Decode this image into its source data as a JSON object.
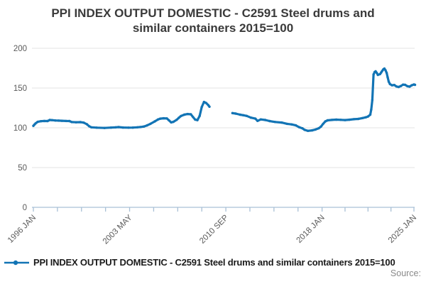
{
  "title": {
    "line1": "PPI INDEX OUTPUT DOMESTIC - C2591 Steel drums and",
    "line2": "similar containers 2015=100"
  },
  "legend": {
    "label": "PPI INDEX OUTPUT DOMESTIC - C2591 Steel drums and similar containers 2015=100"
  },
  "source": {
    "label": "Source:"
  },
  "colors": {
    "line": "#1274b5",
    "grid": "#e3e3e3",
    "axis": "#a9c0d6",
    "tick_label": "#5a5a5a",
    "title": "#3a3a3a",
    "legend_text": "#1a1a1a",
    "source_text": "#8a8a8a"
  },
  "chart_data": {
    "type": "line",
    "title": "PPI INDEX OUTPUT DOMESTIC - C2591 Steel drums and similar containers 2015=100",
    "xlabel": "",
    "ylabel": "",
    "ylim": [
      0,
      200
    ],
    "yticks": [
      0,
      50,
      100,
      150,
      200
    ],
    "ytick_labels": [
      "0",
      "50",
      "100",
      "150",
      "200"
    ],
    "xtick_labels": [
      "1996 JAN",
      "2003 MAY",
      "2010 SEP",
      "2018 JAN",
      "2025 JAN"
    ],
    "xtick_years": [
      1996.0,
      2003.333,
      2010.667,
      2018.0,
      2025.0
    ],
    "minor_ticks_between_labels": 3,
    "xlim": [
      1996.0,
      2025.25
    ],
    "grid": "horizontal",
    "legend_position": "bottom-left",
    "gap_between_segments": [
      2009.42,
      2011.17
    ],
    "series": [
      {
        "name": "PPI INDEX OUTPUT DOMESTIC - C2591 Steel drums and similar containers 2015=100",
        "color": "#1274b5",
        "segments": [
          [
            [
              1996.0,
              102.5
            ],
            [
              1996.08,
              104.0
            ],
            [
              1996.17,
              105.5
            ],
            [
              1996.33,
              107.5
            ],
            [
              1996.58,
              108.3
            ],
            [
              1996.83,
              108.6
            ],
            [
              1997.08,
              108.5
            ],
            [
              1997.25,
              109.8
            ],
            [
              1997.42,
              109.6
            ],
            [
              1997.67,
              109.2
            ],
            [
              1997.92,
              109.0
            ],
            [
              1998.17,
              108.8
            ],
            [
              1998.5,
              108.6
            ],
            [
              1998.75,
              108.5
            ],
            [
              1998.92,
              107.2
            ],
            [
              1999.25,
              107.0
            ],
            [
              1999.58,
              107.1
            ],
            [
              1999.83,
              106.5
            ],
            [
              2000.08,
              104.5
            ],
            [
              2000.25,
              102.0
            ],
            [
              2000.42,
              100.6
            ],
            [
              2000.83,
              100.2
            ],
            [
              2001.42,
              99.8
            ],
            [
              2001.92,
              100.3
            ],
            [
              2002.25,
              100.5
            ],
            [
              2002.5,
              100.9
            ],
            [
              2002.83,
              100.4
            ],
            [
              2003.25,
              100.2
            ],
            [
              2003.58,
              100.3
            ],
            [
              2003.92,
              100.6
            ],
            [
              2004.17,
              101.0
            ],
            [
              2004.42,
              101.6
            ],
            [
              2004.67,
              103.0
            ],
            [
              2004.92,
              105.0
            ],
            [
              2005.25,
              108.0
            ],
            [
              2005.5,
              110.5
            ],
            [
              2005.67,
              111.5
            ],
            [
              2005.92,
              112.0
            ],
            [
              2006.17,
              111.8
            ],
            [
              2006.33,
              109.5
            ],
            [
              2006.5,
              106.8
            ],
            [
              2006.67,
              107.5
            ],
            [
              2006.92,
              110.0
            ],
            [
              2007.08,
              112.5
            ],
            [
              2007.25,
              114.8
            ],
            [
              2007.5,
              116.5
            ],
            [
              2007.75,
              117.3
            ],
            [
              2008.0,
              117.0
            ],
            [
              2008.17,
              113.5
            ],
            [
              2008.33,
              110.3
            ],
            [
              2008.5,
              109.6
            ],
            [
              2008.67,
              115.0
            ],
            [
              2008.83,
              126.0
            ],
            [
              2009.0,
              132.5
            ],
            [
              2009.17,
              131.2
            ],
            [
              2009.33,
              128.5
            ],
            [
              2009.42,
              126.5
            ]
          ],
          [
            [
              2011.17,
              118.5
            ],
            [
              2011.42,
              117.9
            ],
            [
              2011.75,
              116.5
            ],
            [
              2012.0,
              115.8
            ],
            [
              2012.25,
              115.0
            ],
            [
              2012.58,
              112.8
            ],
            [
              2012.92,
              111.5
            ],
            [
              2013.08,
              108.7
            ],
            [
              2013.33,
              110.5
            ],
            [
              2013.67,
              109.8
            ],
            [
              2014.0,
              108.5
            ],
            [
              2014.42,
              107.3
            ],
            [
              2014.92,
              106.6
            ],
            [
              2015.33,
              105.0
            ],
            [
              2015.67,
              104.3
            ],
            [
              2016.0,
              103.0
            ],
            [
              2016.25,
              100.8
            ],
            [
              2016.5,
              99.4
            ],
            [
              2016.67,
              97.4
            ],
            [
              2016.92,
              96.2
            ],
            [
              2017.25,
              96.8
            ],
            [
              2017.5,
              97.9
            ],
            [
              2017.75,
              99.5
            ],
            [
              2017.92,
              101.5
            ],
            [
              2018.08,
              105.0
            ],
            [
              2018.25,
              108.0
            ],
            [
              2018.42,
              109.4
            ],
            [
              2018.75,
              109.9
            ],
            [
              2019.08,
              110.3
            ],
            [
              2019.42,
              110.0
            ],
            [
              2019.75,
              109.7
            ],
            [
              2020.08,
              110.2
            ],
            [
              2020.42,
              110.8
            ],
            [
              2020.75,
              111.2
            ],
            [
              2021.08,
              112.2
            ],
            [
              2021.33,
              113.2
            ],
            [
              2021.5,
              114.2
            ],
            [
              2021.67,
              116.5
            ],
            [
              2021.75,
              123.0
            ],
            [
              2021.83,
              135.0
            ],
            [
              2021.92,
              167.0
            ],
            [
              2022.0,
              170.0
            ],
            [
              2022.08,
              171.0
            ],
            [
              2022.17,
              169.0
            ],
            [
              2022.25,
              166.5
            ],
            [
              2022.42,
              167.5
            ],
            [
              2022.5,
              169.5
            ],
            [
              2022.58,
              171.5
            ],
            [
              2022.67,
              173.5
            ],
            [
              2022.75,
              174.5
            ],
            [
              2022.83,
              172.5
            ],
            [
              2022.92,
              169.0
            ],
            [
              2023.0,
              163.5
            ],
            [
              2023.08,
              158.0
            ],
            [
              2023.17,
              155.0
            ],
            [
              2023.33,
              153.5
            ],
            [
              2023.5,
              153.8
            ],
            [
              2023.67,
              152.0
            ],
            [
              2023.83,
              151.3
            ],
            [
              2024.0,
              152.5
            ],
            [
              2024.17,
              154.3
            ],
            [
              2024.33,
              154.0
            ],
            [
              2024.5,
              152.3
            ],
            [
              2024.67,
              151.8
            ],
            [
              2024.83,
              153.5
            ],
            [
              2025.0,
              154.5
            ],
            [
              2025.08,
              154.0
            ]
          ]
        ]
      }
    ]
  }
}
